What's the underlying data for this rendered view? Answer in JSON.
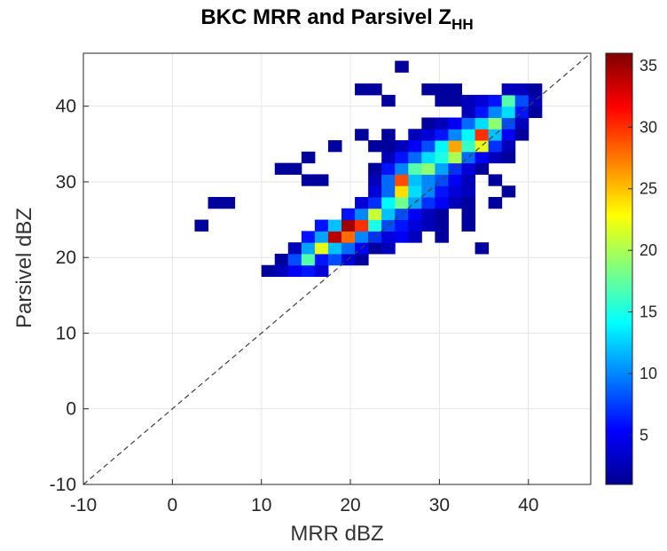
{
  "chart_data": {
    "type": "heatmap",
    "title": "BKC MRR and Parsivel Z",
    "title_subscript": "HH",
    "xlabel": "MRR dBZ",
    "ylabel": "Parsivel dBZ",
    "xlim": [
      -10,
      47
    ],
    "ylim": [
      -10,
      47
    ],
    "xticks": [
      "-10",
      "0",
      "10",
      "20",
      "30",
      "40"
    ],
    "yticks": [
      "-10",
      "0",
      "10",
      "20",
      "30",
      "40"
    ],
    "grid": true,
    "bin_size": 1.5,
    "reference_line": "1:1 dashed",
    "colorbar": {
      "min": 1,
      "max": 36,
      "ticks": [
        "5",
        "10",
        "15",
        "20",
        "25",
        "30",
        "35"
      ],
      "colormap": "jet"
    },
    "cells": [
      {
        "x": 10.75,
        "y": 18.25,
        "v": 2
      },
      {
        "x": 12.25,
        "y": 18.25,
        "v": 3
      },
      {
        "x": 13.75,
        "y": 18.25,
        "v": 5
      },
      {
        "x": 15.25,
        "y": 18.25,
        "v": 6
      },
      {
        "x": 16.75,
        "y": 18.25,
        "v": 4
      },
      {
        "x": 12.25,
        "y": 19.75,
        "v": 2
      },
      {
        "x": 13.75,
        "y": 19.75,
        "v": 8
      },
      {
        "x": 15.25,
        "y": 19.75,
        "v": 17
      },
      {
        "x": 16.75,
        "y": 19.75,
        "v": 6
      },
      {
        "x": 18.25,
        "y": 19.75,
        "v": 8
      },
      {
        "x": 19.75,
        "y": 19.75,
        "v": 4
      },
      {
        "x": 21.25,
        "y": 19.75,
        "v": 2
      },
      {
        "x": 13.75,
        "y": 21.25,
        "v": 3
      },
      {
        "x": 15.25,
        "y": 21.25,
        "v": 11
      },
      {
        "x": 16.75,
        "y": 21.25,
        "v": 22
      },
      {
        "x": 18.25,
        "y": 21.25,
        "v": 12
      },
      {
        "x": 19.75,
        "y": 21.25,
        "v": 9
      },
      {
        "x": 21.25,
        "y": 21.25,
        "v": 5
      },
      {
        "x": 22.75,
        "y": 21.25,
        "v": 2
      },
      {
        "x": 24.25,
        "y": 21.25,
        "v": 3
      },
      {
        "x": 34.75,
        "y": 21.25,
        "v": 2
      },
      {
        "x": 15.25,
        "y": 22.75,
        "v": 6
      },
      {
        "x": 16.75,
        "y": 22.75,
        "v": 11
      },
      {
        "x": 18.25,
        "y": 22.75,
        "v": 34
      },
      {
        "x": 19.75,
        "y": 22.75,
        "v": 28
      },
      {
        "x": 21.25,
        "y": 22.75,
        "v": 10
      },
      {
        "x": 22.75,
        "y": 22.75,
        "v": 7
      },
      {
        "x": 24.25,
        "y": 22.75,
        "v": 4
      },
      {
        "x": 25.75,
        "y": 22.75,
        "v": 5
      },
      {
        "x": 27.25,
        "y": 22.75,
        "v": 3
      },
      {
        "x": 30.25,
        "y": 22.75,
        "v": 2
      },
      {
        "x": 3.25,
        "y": 24.25,
        "v": 2
      },
      {
        "x": 16.75,
        "y": 24.25,
        "v": 6
      },
      {
        "x": 18.25,
        "y": 24.25,
        "v": 12
      },
      {
        "x": 19.75,
        "y": 24.25,
        "v": 35
      },
      {
        "x": 21.25,
        "y": 24.25,
        "v": 30
      },
      {
        "x": 22.75,
        "y": 24.25,
        "v": 15
      },
      {
        "x": 24.25,
        "y": 24.25,
        "v": 8
      },
      {
        "x": 25.75,
        "y": 24.25,
        "v": 6
      },
      {
        "x": 27.25,
        "y": 24.25,
        "v": 4
      },
      {
        "x": 28.75,
        "y": 24.25,
        "v": 3
      },
      {
        "x": 30.25,
        "y": 24.25,
        "v": 2
      },
      {
        "x": 33.25,
        "y": 24.25,
        "v": 2
      },
      {
        "x": 19.75,
        "y": 25.75,
        "v": 6
      },
      {
        "x": 21.25,
        "y": 25.75,
        "v": 10
      },
      {
        "x": 22.75,
        "y": 25.75,
        "v": 21
      },
      {
        "x": 24.25,
        "y": 25.75,
        "v": 12
      },
      {
        "x": 25.75,
        "y": 25.75,
        "v": 8
      },
      {
        "x": 27.25,
        "y": 25.75,
        "v": 5
      },
      {
        "x": 28.75,
        "y": 25.75,
        "v": 3
      },
      {
        "x": 30.25,
        "y": 25.75,
        "v": 2
      },
      {
        "x": 33.25,
        "y": 25.75,
        "v": 2
      },
      {
        "x": 4.75,
        "y": 27.25,
        "v": 2
      },
      {
        "x": 6.25,
        "y": 27.25,
        "v": 2
      },
      {
        "x": 21.25,
        "y": 27.25,
        "v": 4
      },
      {
        "x": 22.75,
        "y": 27.25,
        "v": 7
      },
      {
        "x": 24.25,
        "y": 27.25,
        "v": 14
      },
      {
        "x": 25.75,
        "y": 27.25,
        "v": 18
      },
      {
        "x": 27.25,
        "y": 27.25,
        "v": 11
      },
      {
        "x": 28.75,
        "y": 27.25,
        "v": 7
      },
      {
        "x": 30.25,
        "y": 27.25,
        "v": 5
      },
      {
        "x": 31.75,
        "y": 27.25,
        "v": 3
      },
      {
        "x": 33.25,
        "y": 27.25,
        "v": 2
      },
      {
        "x": 36.25,
        "y": 27.25,
        "v": 2
      },
      {
        "x": 22.75,
        "y": 28.75,
        "v": 4
      },
      {
        "x": 24.25,
        "y": 28.75,
        "v": 9
      },
      {
        "x": 25.75,
        "y": 28.75,
        "v": 24
      },
      {
        "x": 27.25,
        "y": 28.75,
        "v": 13
      },
      {
        "x": 28.75,
        "y": 28.75,
        "v": 10
      },
      {
        "x": 30.25,
        "y": 28.75,
        "v": 6
      },
      {
        "x": 31.75,
        "y": 28.75,
        "v": 4
      },
      {
        "x": 33.25,
        "y": 28.75,
        "v": 3
      },
      {
        "x": 37.75,
        "y": 28.75,
        "v": 2
      },
      {
        "x": 15.25,
        "y": 30.25,
        "v": 2
      },
      {
        "x": 16.75,
        "y": 30.25,
        "v": 2
      },
      {
        "x": 22.75,
        "y": 30.25,
        "v": 3
      },
      {
        "x": 24.25,
        "y": 30.25,
        "v": 9
      },
      {
        "x": 25.75,
        "y": 30.25,
        "v": 29
      },
      {
        "x": 27.25,
        "y": 30.25,
        "v": 12
      },
      {
        "x": 28.75,
        "y": 30.25,
        "v": 10
      },
      {
        "x": 30.25,
        "y": 30.25,
        "v": 8
      },
      {
        "x": 31.75,
        "y": 30.25,
        "v": 5
      },
      {
        "x": 33.25,
        "y": 30.25,
        "v": 3
      },
      {
        "x": 36.25,
        "y": 30.25,
        "v": 2
      },
      {
        "x": 12.25,
        "y": 31.75,
        "v": 2
      },
      {
        "x": 13.75,
        "y": 31.75,
        "v": 2
      },
      {
        "x": 22.75,
        "y": 31.75,
        "v": 2
      },
      {
        "x": 24.25,
        "y": 31.75,
        "v": 6
      },
      {
        "x": 25.75,
        "y": 31.75,
        "v": 10
      },
      {
        "x": 27.25,
        "y": 31.75,
        "v": 17
      },
      {
        "x": 28.75,
        "y": 31.75,
        "v": 19
      },
      {
        "x": 30.25,
        "y": 31.75,
        "v": 11
      },
      {
        "x": 31.75,
        "y": 31.75,
        "v": 7
      },
      {
        "x": 33.25,
        "y": 31.75,
        "v": 4
      },
      {
        "x": 34.75,
        "y": 31.75,
        "v": 2
      },
      {
        "x": 15.25,
        "y": 33.25,
        "v": 2
      },
      {
        "x": 24.25,
        "y": 33.25,
        "v": 3
      },
      {
        "x": 25.75,
        "y": 33.25,
        "v": 6
      },
      {
        "x": 27.25,
        "y": 33.25,
        "v": 9
      },
      {
        "x": 28.75,
        "y": 33.25,
        "v": 13
      },
      {
        "x": 30.25,
        "y": 33.25,
        "v": 15
      },
      {
        "x": 31.75,
        "y": 33.25,
        "v": 20
      },
      {
        "x": 33.25,
        "y": 33.25,
        "v": 9
      },
      {
        "x": 34.75,
        "y": 33.25,
        "v": 5
      },
      {
        "x": 36.25,
        "y": 33.25,
        "v": 3
      },
      {
        "x": 37.75,
        "y": 33.25,
        "v": 2
      },
      {
        "x": 18.25,
        "y": 34.75,
        "v": 2
      },
      {
        "x": 22.75,
        "y": 34.75,
        "v": 2
      },
      {
        "x": 24.25,
        "y": 34.75,
        "v": 2
      },
      {
        "x": 25.75,
        "y": 34.75,
        "v": 3
      },
      {
        "x": 27.25,
        "y": 34.75,
        "v": 5
      },
      {
        "x": 28.75,
        "y": 34.75,
        "v": 8
      },
      {
        "x": 30.25,
        "y": 34.75,
        "v": 14
      },
      {
        "x": 31.75,
        "y": 34.75,
        "v": 26
      },
      {
        "x": 33.25,
        "y": 34.75,
        "v": 16
      },
      {
        "x": 34.75,
        "y": 34.75,
        "v": 22
      },
      {
        "x": 36.25,
        "y": 34.75,
        "v": 7
      },
      {
        "x": 37.75,
        "y": 34.75,
        "v": 3
      },
      {
        "x": 21.25,
        "y": 36.25,
        "v": 2
      },
      {
        "x": 24.25,
        "y": 36.25,
        "v": 2
      },
      {
        "x": 27.25,
        "y": 36.25,
        "v": 3
      },
      {
        "x": 28.75,
        "y": 36.25,
        "v": 4
      },
      {
        "x": 30.25,
        "y": 36.25,
        "v": 6
      },
      {
        "x": 31.75,
        "y": 36.25,
        "v": 10
      },
      {
        "x": 33.25,
        "y": 36.25,
        "v": 14
      },
      {
        "x": 34.75,
        "y": 36.25,
        "v": 30
      },
      {
        "x": 36.25,
        "y": 36.25,
        "v": 12
      },
      {
        "x": 37.75,
        "y": 36.25,
        "v": 5
      },
      {
        "x": 39.25,
        "y": 36.25,
        "v": 2
      },
      {
        "x": 28.75,
        "y": 37.75,
        "v": 2
      },
      {
        "x": 30.25,
        "y": 37.75,
        "v": 3
      },
      {
        "x": 31.75,
        "y": 37.75,
        "v": 5
      },
      {
        "x": 33.25,
        "y": 37.75,
        "v": 9
      },
      {
        "x": 34.75,
        "y": 37.75,
        "v": 13
      },
      {
        "x": 36.25,
        "y": 37.75,
        "v": 19
      },
      {
        "x": 37.75,
        "y": 37.75,
        "v": 8
      },
      {
        "x": 39.25,
        "y": 37.75,
        "v": 3
      },
      {
        "x": 33.25,
        "y": 39.25,
        "v": 3
      },
      {
        "x": 34.75,
        "y": 39.25,
        "v": 6
      },
      {
        "x": 36.25,
        "y": 39.25,
        "v": 10
      },
      {
        "x": 37.75,
        "y": 39.25,
        "v": 13
      },
      {
        "x": 39.25,
        "y": 39.25,
        "v": 6
      },
      {
        "x": 40.75,
        "y": 39.25,
        "v": 2
      },
      {
        "x": 24.25,
        "y": 40.75,
        "v": 2
      },
      {
        "x": 30.25,
        "y": 40.75,
        "v": 2
      },
      {
        "x": 31.75,
        "y": 40.75,
        "v": 2
      },
      {
        "x": 33.25,
        "y": 40.75,
        "v": 3
      },
      {
        "x": 34.75,
        "y": 40.75,
        "v": 4
      },
      {
        "x": 36.25,
        "y": 40.75,
        "v": 6
      },
      {
        "x": 37.75,
        "y": 40.75,
        "v": 17
      },
      {
        "x": 39.25,
        "y": 40.75,
        "v": 8
      },
      {
        "x": 40.75,
        "y": 40.75,
        "v": 3
      },
      {
        "x": 21.25,
        "y": 42.25,
        "v": 2
      },
      {
        "x": 22.75,
        "y": 42.25,
        "v": 2
      },
      {
        "x": 28.75,
        "y": 42.25,
        "v": 2
      },
      {
        "x": 30.25,
        "y": 42.25,
        "v": 2
      },
      {
        "x": 31.75,
        "y": 42.25,
        "v": 2
      },
      {
        "x": 37.75,
        "y": 42.25,
        "v": 3
      },
      {
        "x": 39.25,
        "y": 42.25,
        "v": 3
      },
      {
        "x": 40.75,
        "y": 42.25,
        "v": 2
      },
      {
        "x": 25.75,
        "y": 45.25,
        "v": 2
      }
    ]
  }
}
